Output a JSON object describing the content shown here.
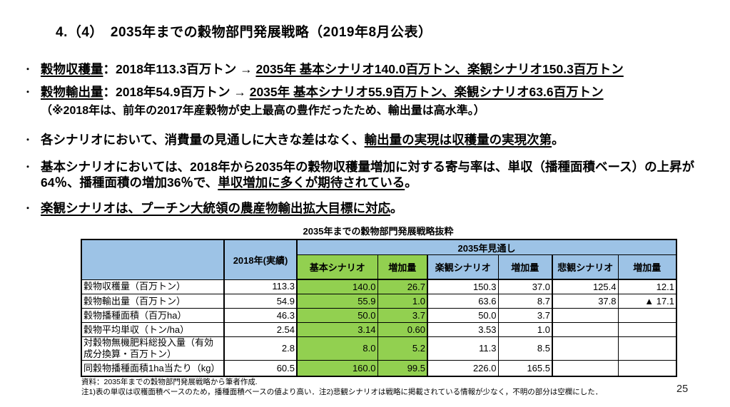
{
  "title": "4.（4）　2035年までの穀物部門発展戦略（2019年8月公表）",
  "page_number": "25",
  "bullets": [
    {
      "note": false,
      "segments": [
        {
          "text": "穀物収穫量",
          "u": true
        },
        {
          "text": "：2018年113.3百万トン → ",
          "u": false
        },
        {
          "text": "2035年 基本シナリオ140.0百万トン、楽観シナリオ150.3百万トン",
          "u": true
        }
      ]
    },
    {
      "note": false,
      "segments": [
        {
          "text": "穀物輸出量",
          "u": true
        },
        {
          "text": "：2018年54.9百万トン → ",
          "u": false
        },
        {
          "text": "2035年 基本シナリオ55.9百万トン、楽観シナリオ63.6百万トン",
          "u": true
        }
      ]
    },
    {
      "note": true,
      "segments": [
        {
          "text": "（※2018年は、前年の2017年産穀物が史上最高の豊作だったため、輸出量は高水準。）",
          "u": false
        }
      ]
    },
    {
      "note": false,
      "segments": [
        {
          "text": "各シナリオにおいて、消費量の見通しに大きな差はなく、",
          "u": false
        },
        {
          "text": "輸出量の実現は収穫量の実現次第",
          "u": true
        },
        {
          "text": "。",
          "u": false
        }
      ]
    },
    {
      "note": false,
      "segments": [
        {
          "text": "基本シナリオにおいては、2018年から2035年の穀物収穫量増加に対する寄与率は、単収（播種面積ベース）の上昇が64％、播種面積の増加36％で、",
          "u": false
        },
        {
          "text": "単収増加に多くが期待されている",
          "u": true
        },
        {
          "text": "。",
          "u": false
        }
      ]
    },
    {
      "note": false,
      "segments": [
        {
          "text": "楽観シナリオは、プーチン大統領の農産物輸出拡大目標に対応",
          "u": true
        },
        {
          "text": "。",
          "u": false
        }
      ]
    }
  ],
  "table": {
    "title": "2035年までの穀物部門発展戦略抜粋",
    "corner": "",
    "col_2018": "2018年(実績)",
    "outlook_header": "2035年見通し",
    "scenarios": [
      {
        "label": "基本シナリオ",
        "green": true
      },
      {
        "label": "増加量",
        "green": true
      },
      {
        "label": "楽観シナリオ",
        "green": false
      },
      {
        "label": "増加量",
        "green": false
      },
      {
        "label": "悲観シナリオ",
        "green": false
      },
      {
        "label": "増加量",
        "green": false
      }
    ],
    "rows": [
      {
        "label": "穀物収穫量（百万トン）",
        "values": [
          "113.3",
          "140.0",
          "26.7",
          "150.3",
          "37.0",
          "125.4",
          "12.1"
        ]
      },
      {
        "label": "穀物輸出量（百万トン）",
        "values": [
          "54.9",
          "55.9",
          "1.0",
          "63.6",
          "8.7",
          "37.8",
          "▲ 17.1"
        ]
      },
      {
        "label": "穀物播種面積（百万ha）",
        "values": [
          "46.3",
          "50.0",
          "3.7",
          "50.0",
          "3.7",
          "",
          ""
        ]
      },
      {
        "label": "穀物平均単収（トン/ha）",
        "values": [
          "2.54",
          "3.14",
          "0.60",
          "3.53",
          "1.0",
          "",
          ""
        ]
      },
      {
        "label": "対穀物無機肥料総投入量（有効成分換算・百万トン）",
        "values": [
          "2.8",
          "8.0",
          "5.2",
          "11.3",
          "8.5",
          "",
          ""
        ]
      },
      {
        "label": "同穀物播種面積1ha当たり（kg）",
        "values": [
          "60.5",
          "160.0",
          "99.5",
          "226.0",
          "165.5",
          "",
          ""
        ]
      }
    ]
  },
  "footer": {
    "source": "資料：2035年までの穀物部門発展戦略から筆者作成.",
    "notes": "注1)表の単収は収穫面積ベースのため，播種面積ベースの値より高い．注2)悲観シナリオは戦略に掲載されている情報が少なく，不明の部分は空欄にした．"
  },
  "colors": {
    "header_blue": "#9DC3E6",
    "scenario_green": "#92D050"
  }
}
